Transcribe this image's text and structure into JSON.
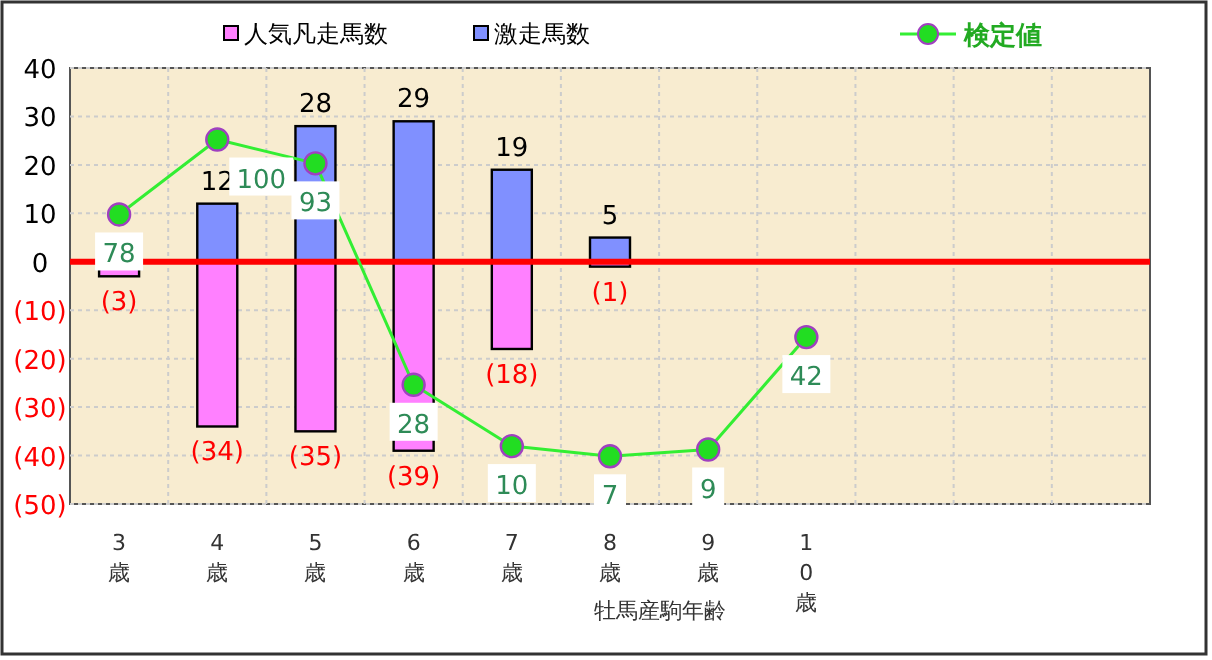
{
  "chart_data": {
    "type": "bar",
    "stacked": true,
    "xlabel": "牡馬産駒年齢",
    "categories": [
      "3歳",
      "4歳",
      "5歳",
      "6歳",
      "7歳",
      "8歳",
      "9歳",
      "10歳",
      null,
      null,
      null
    ],
    "ylim": [
      -50,
      40
    ],
    "yticks": [
      40,
      30,
      20,
      10,
      0,
      {
        "value": -10,
        "label": "(10)"
      },
      {
        "value": -20,
        "label": "(20)"
      },
      {
        "value": -30,
        "label": "(30)"
      },
      {
        "value": -40,
        "label": "(40)"
      },
      {
        "value": -50,
        "label": "(50)"
      }
    ],
    "y2lim": [
      -7,
      121
    ],
    "grid": true,
    "legend": "top",
    "marker": "circle",
    "ref_lines": [
      {
        "axis": "y",
        "value": 0,
        "color": "#ff0000"
      }
    ],
    "series": [
      {
        "name": "人気凡走馬数",
        "color": "#ff80ff",
        "values": [
          -3,
          -34,
          -35,
          -39,
          -18,
          -1,
          null,
          null,
          null,
          null,
          null
        ],
        "value_labels": [
          "(3)",
          "(34)",
          "(35)",
          "(39)",
          "(18)",
          "(1)",
          null,
          null,
          null,
          null,
          null
        ]
      },
      {
        "name": "激走馬数",
        "color": "#8090ff",
        "values": [
          null,
          12,
          28,
          29,
          19,
          5,
          null,
          null,
          null,
          null,
          null
        ],
        "value_labels": [
          null,
          "12",
          "28",
          "29",
          "19",
          "5",
          null,
          null,
          null,
          null,
          null
        ]
      },
      {
        "name": "検定値",
        "type": "line",
        "axis": "y2",
        "color": "#33ee33",
        "values": [
          78,
          100,
          93,
          28,
          10,
          7,
          9,
          42,
          null,
          null,
          null
        ],
        "value_labels": [
          "78",
          "100",
          "93",
          "28",
          "10",
          "7",
          "9",
          "42",
          null,
          null,
          null
        ]
      }
    ]
  }
}
